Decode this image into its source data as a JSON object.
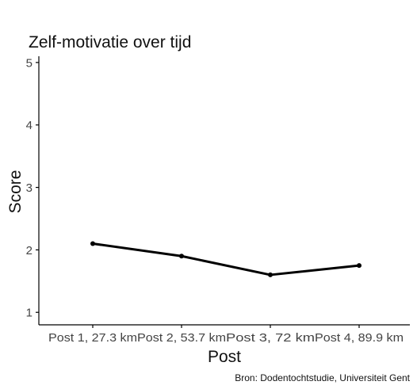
{
  "chart_data": {
    "type": "line",
    "title": "Zelf-motivatie over tijd",
    "xlabel": "Post",
    "ylabel": "Score",
    "caption": "Bron: Dodentochtstudie, Universiteit Gent",
    "categories": [
      "Post 1, 27.3 km",
      "Post 2, 53.7 km",
      "Post 3, 72 km",
      "Post 4, 89.9 km"
    ],
    "values": [
      2.1,
      1.9,
      1.6,
      1.75
    ],
    "ylim": [
      0.8,
      5.1
    ],
    "yticks": [
      1,
      2,
      3,
      4,
      5
    ],
    "grid": false,
    "line_color": "#000000"
  }
}
